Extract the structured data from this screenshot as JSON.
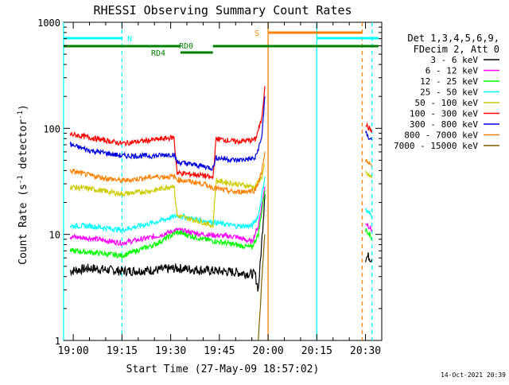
{
  "chart_data": {
    "type": "line",
    "title": "RHESSI Observing Summary Count Rates",
    "xlabel": "Start Time (27-May-09 18:57:02)",
    "ylabel_main": "Count Rate (s",
    "ylabel_exp1": "-1",
    "ylabel_mid": " detector",
    "ylabel_exp2": "-1",
    "ylabel_end": ")",
    "yscale": "log",
    "xlim": [
      "18:57:02",
      "20:35:00"
    ],
    "ylim": [
      1,
      1000
    ],
    "x_ticks": [
      "19:00",
      "19:15",
      "19:30",
      "19:45",
      "20:00",
      "20:15",
      "20:30"
    ],
    "y_ticks": [
      {
        "value": 1,
        "label": "1"
      },
      {
        "value": 10,
        "label": "10"
      },
      {
        "value": 100,
        "label": "100"
      },
      {
        "value": 1000,
        "label": "1000"
      }
    ],
    "legend_header": [
      "Det 1,3,4,5,6,9,",
      "FDecim 2, Att 0"
    ],
    "legend_position": "right",
    "timestamp": "14-Oct-2021 20:39",
    "flags": [
      {
        "label": "N",
        "color": "#00ffff",
        "segments": [
          [
            "18:57",
            "19:15"
          ],
          [
            "20:15",
            "20:34"
          ]
        ]
      },
      {
        "label": "S",
        "color": "#ff8000",
        "segments": [
          [
            "20:00",
            "20:29"
          ]
        ]
      },
      {
        "label": "RD0",
        "color": "#007f00",
        "segments": [
          [
            "18:57",
            "19:33"
          ],
          [
            "19:43",
            "20:34"
          ]
        ]
      },
      {
        "label": "RD4",
        "color": "#007f00",
        "segments": [
          [
            "19:33",
            "19:43"
          ]
        ]
      }
    ],
    "vertical_lines": [
      {
        "time": "18:57",
        "color": "#00ffff",
        "style": "solid"
      },
      {
        "time": "19:15",
        "color": "#00ffff",
        "style": "dashed"
      },
      {
        "time": "20:00",
        "color": "#ff8000",
        "style": "solid"
      },
      {
        "time": "20:15",
        "color": "#00ffff",
        "style": "solid"
      },
      {
        "time": "20:29",
        "color": "#ff8000",
        "style": "dashed"
      },
      {
        "time": "20:32",
        "color": "#00ffff",
        "style": "dashed"
      }
    ],
    "series": [
      {
        "name": "3 - 6 keV",
        "color": "#000000",
        "points": [
          [
            "18:59",
            4.5
          ],
          [
            "19:05",
            4.8
          ],
          [
            "19:15",
            4.5
          ],
          [
            "19:25",
            4.6
          ],
          [
            "19:32",
            4.8
          ],
          [
            "19:40",
            4.6
          ],
          [
            "19:50",
            4.4
          ],
          [
            "19:56",
            4.2
          ],
          [
            "19:57",
            3.0
          ],
          [
            "19:58",
            8.0
          ],
          [
            "19:59",
            24.0
          ]
        ],
        "points2": [
          [
            "20:30",
            6.0
          ],
          [
            "20:31",
            6.2
          ],
          [
            "20:32",
            5.8
          ]
        ]
      },
      {
        "name": "6 - 12 keV",
        "color": "#ff00ff",
        "points": [
          [
            "18:59",
            9.5
          ],
          [
            "19:05",
            9.2
          ],
          [
            "19:15",
            8.3
          ],
          [
            "19:25",
            9.5
          ],
          [
            "19:32",
            11.0
          ],
          [
            "19:40",
            10.0
          ],
          [
            "19:50",
            9.5
          ],
          [
            "19:55",
            8.5
          ],
          [
            "19:57",
            12.0
          ],
          [
            "19:59",
            28.0
          ]
        ],
        "points2": [
          [
            "20:30",
            13.0
          ],
          [
            "20:31",
            12.0
          ],
          [
            "20:32",
            11.0
          ]
        ]
      },
      {
        "name": "12 - 25 keV",
        "color": "#00ff00",
        "points": [
          [
            "18:59",
            7.0
          ],
          [
            "19:05",
            6.8
          ],
          [
            "19:15",
            6.3
          ],
          [
            "19:25",
            8.0
          ],
          [
            "19:32",
            10.5
          ],
          [
            "19:40",
            9.0
          ],
          [
            "19:50",
            8.0
          ],
          [
            "19:55",
            7.5
          ],
          [
            "19:57",
            10.0
          ],
          [
            "19:59",
            26.0
          ]
        ],
        "points2": [
          [
            "20:30",
            11.0
          ],
          [
            "20:31",
            10.5
          ],
          [
            "20:32",
            9.0
          ]
        ]
      },
      {
        "name": "25 - 50 keV",
        "color": "#00ffff",
        "points": [
          [
            "18:59",
            12.0
          ],
          [
            "19:05",
            12.0
          ],
          [
            "19:15",
            11.0
          ],
          [
            "19:25",
            13.0
          ],
          [
            "19:32",
            15.0
          ],
          [
            "19:40",
            13.5
          ],
          [
            "19:50",
            12.0
          ],
          [
            "19:55",
            12.0
          ],
          [
            "19:57",
            15.0
          ],
          [
            "19:59",
            35.0
          ]
        ],
        "points2": [
          [
            "20:30",
            17.0
          ],
          [
            "20:31",
            16.0
          ],
          [
            "20:32",
            15.0
          ]
        ]
      },
      {
        "name": "50 - 100 keV",
        "color": "#cccc00",
        "points": [
          [
            "18:59",
            28.0
          ],
          [
            "19:05",
            27.0
          ],
          [
            "19:15",
            24.0
          ],
          [
            "19:25",
            26.0
          ],
          [
            "19:31",
            29.0
          ],
          [
            "19:32",
            15.0
          ],
          [
            "19:40",
            13.0
          ],
          [
            "19:43",
            12.0
          ],
          [
            "19:44",
            32.0
          ],
          [
            "19:50",
            30.0
          ],
          [
            "19:56",
            28.0
          ],
          [
            "19:58",
            35.0
          ],
          [
            "19:59",
            45.0
          ]
        ],
        "points2": [
          [
            "20:30",
            38.0
          ],
          [
            "20:31",
            36.0
          ],
          [
            "20:32",
            34.0
          ]
        ]
      },
      {
        "name": "100 - 300 keV",
        "color": "#ff0000",
        "points": [
          [
            "18:59",
            88.0
          ],
          [
            "19:05",
            82.0
          ],
          [
            "19:15",
            72.0
          ],
          [
            "19:25",
            78.0
          ],
          [
            "19:31",
            82.0
          ],
          [
            "19:32",
            38.0
          ],
          [
            "19:40",
            36.0
          ],
          [
            "19:43",
            34.0
          ],
          [
            "19:44",
            80.0
          ],
          [
            "19:50",
            75.0
          ],
          [
            "19:56",
            78.0
          ],
          [
            "19:58",
            120.0
          ],
          [
            "19:59",
            250.0
          ]
        ],
        "points2": [
          [
            "20:30",
            110.0
          ],
          [
            "20:31",
            100.0
          ],
          [
            "20:32",
            95.0
          ]
        ]
      },
      {
        "name": "300 - 800 keV",
        "color": "#0000dd",
        "points": [
          [
            "18:59",
            70.0
          ],
          [
            "19:05",
            62.0
          ],
          [
            "19:15",
            55.0
          ],
          [
            "19:25",
            55.0
          ],
          [
            "19:31",
            57.0
          ],
          [
            "19:32",
            48.0
          ],
          [
            "19:40",
            44.0
          ],
          [
            "19:43",
            42.0
          ],
          [
            "19:44",
            53.0
          ],
          [
            "19:50",
            50.0
          ],
          [
            "19:56",
            52.0
          ],
          [
            "19:58",
            80.0
          ],
          [
            "19:59",
            200.0
          ]
        ],
        "points2": [
          [
            "20:30",
            90.0
          ],
          [
            "20:31",
            82.0
          ],
          [
            "20:32",
            78.0
          ]
        ]
      },
      {
        "name": "800 - 7000 keV",
        "color": "#ff8000",
        "points": [
          [
            "18:59",
            40.0
          ],
          [
            "19:05",
            36.0
          ],
          [
            "19:15",
            32.0
          ],
          [
            "19:25",
            35.0
          ],
          [
            "19:31",
            35.0
          ],
          [
            "19:32",
            33.0
          ],
          [
            "19:40",
            30.0
          ],
          [
            "19:44",
            27.0
          ],
          [
            "19:50",
            25.0
          ],
          [
            "19:56",
            26.0
          ],
          [
            "19:58",
            38.0
          ],
          [
            "19:59",
            60.0
          ]
        ],
        "points2": [
          [
            "20:30",
            50.0
          ],
          [
            "20:31",
            46.0
          ],
          [
            "20:32",
            44.0
          ]
        ]
      },
      {
        "name": "7000 - 15000 keV",
        "color": "#806000",
        "points": [
          [
            "19:57",
            1.0
          ],
          [
            "19:58",
            3.5
          ],
          [
            "19:59",
            10.0
          ]
        ],
        "points2": []
      }
    ]
  }
}
